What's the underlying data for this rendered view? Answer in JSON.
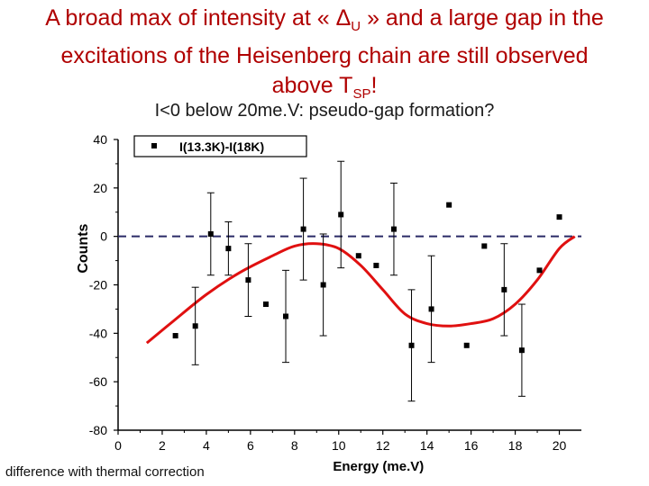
{
  "slide": {
    "title_lines": [
      "A broad max of intensity at « Δ",
      "U",
      " » and a large gap in the",
      "excitations of the Heisenberg chain are still observed",
      "above T",
      "SP",
      "!"
    ],
    "subtitle": "I<0 below 20me.V: pseudo-gap formation?",
    "caption": "difference with thermal correction"
  },
  "colors": {
    "title": "#b00000",
    "fit_curve": "#e01010",
    "zero_line": "#2a2a66",
    "points": "#000000"
  },
  "chart_data": {
    "type": "scatter",
    "xlabel": "Energy (me.V)",
    "ylabel": "Counts",
    "xlim": [
      0,
      21
    ],
    "ylim": [
      -80,
      40
    ],
    "xticks": [
      0,
      2,
      4,
      6,
      8,
      10,
      12,
      14,
      16,
      18,
      20
    ],
    "yticks": [
      40,
      20,
      0,
      -20,
      -40,
      -60,
      -80
    ],
    "legend": {
      "label": "I(13.3K)-I(18K)",
      "position": "top-left"
    },
    "zero_line": 0,
    "series": [
      {
        "name": "I(13.3K)-I(18K)",
        "x": [
          2.6,
          3.5,
          4.2,
          5.0,
          5.9,
          6.7,
          7.6,
          8.4,
          9.3,
          10.1,
          10.9,
          11.7,
          12.5,
          13.3,
          14.2,
          15.0,
          15.8,
          16.6,
          17.5,
          18.3,
          19.1,
          20.0
        ],
        "y": [
          -41,
          -37,
          1,
          -5,
          -18,
          -28,
          -33,
          3,
          -20,
          9,
          -8,
          -12,
          3,
          -45,
          -30,
          13,
          -45,
          -4,
          -22,
          -47,
          -14,
          8
        ],
        "err": [
          0,
          16,
          17,
          11,
          15,
          0,
          19,
          21,
          21,
          22,
          0,
          0,
          19,
          23,
          22,
          0,
          0,
          0,
          19,
          19,
          0,
          0
        ]
      }
    ],
    "fit_curve": {
      "x": [
        1.3,
        2.5,
        4.0,
        5.5,
        7.0,
        8.0,
        9.0,
        10.0,
        11.0,
        12.0,
        13.0,
        14.0,
        15.0,
        16.0,
        17.0,
        18.0,
        19.0,
        20.0,
        20.7
      ],
      "y": [
        -44,
        -35,
        -24,
        -15,
        -8,
        -4,
        -3,
        -5,
        -12,
        -22,
        -32,
        -36,
        -37,
        -36,
        -34,
        -28,
        -18,
        -5,
        0
      ]
    }
  }
}
